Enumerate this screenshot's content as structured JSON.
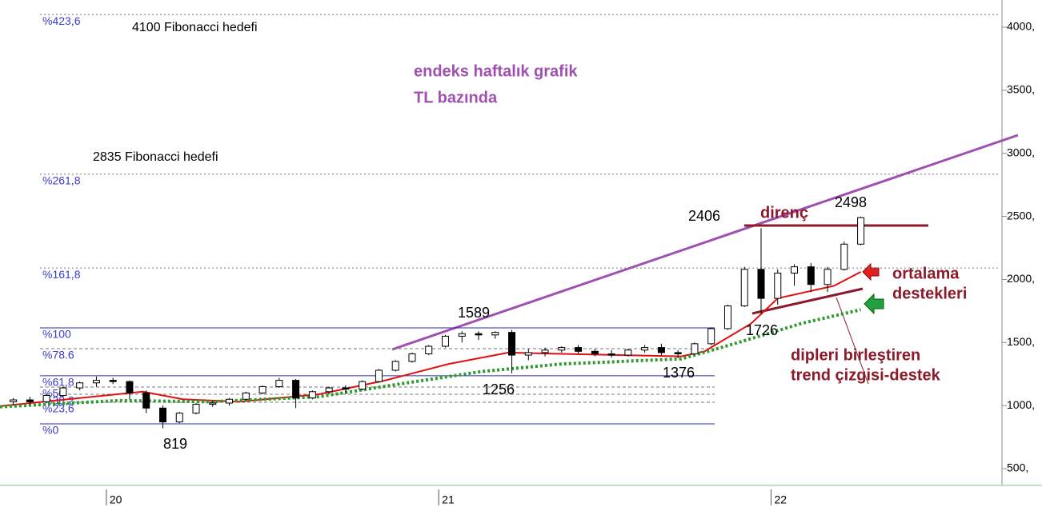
{
  "chart_data": {
    "type": "candlestick",
    "x": [
      2019.72,
      2019.77,
      2019.82,
      2019.87,
      2019.92,
      2019.97,
      2020.02,
      2020.07,
      2020.12,
      2020.17,
      2020.22,
      2020.27,
      2020.32,
      2020.37,
      2020.42,
      2020.47,
      2020.52,
      2020.57,
      2020.62,
      2020.67,
      2020.72,
      2020.77,
      2020.82,
      2020.87,
      2020.92,
      2020.97,
      2021.02,
      2021.07,
      2021.12,
      2021.17,
      2021.22,
      2021.27,
      2021.32,
      2021.37,
      2021.42,
      2021.47,
      2021.52,
      2021.57,
      2021.62,
      2021.67,
      2021.72,
      2021.77,
      2021.82,
      2021.87,
      2021.92,
      2021.97,
      2022.02,
      2022.07,
      2022.12,
      2022.17,
      2022.22,
      2022.27
    ],
    "open": [
      1030,
      1045,
      1030,
      1080,
      1140,
      1180,
      1200,
      1190,
      1100,
      980,
      870,
      940,
      1010,
      1020,
      1050,
      1100,
      1150,
      1200,
      1060,
      1110,
      1140,
      1130,
      1190,
      1280,
      1350,
      1410,
      1470,
      1550,
      1570,
      1560,
      1580,
      1400,
      1420,
      1440,
      1460,
      1430,
      1410,
      1400,
      1440,
      1460,
      1420,
      1410,
      1490,
      1610,
      1790,
      2080,
      1850,
      2050,
      2100,
      1960,
      2080,
      2280
    ],
    "high": [
      1060,
      1070,
      1090,
      1150,
      1190,
      1230,
      1220,
      1200,
      1120,
      1000,
      950,
      1020,
      1040,
      1060,
      1110,
      1160,
      1220,
      1210,
      1120,
      1150,
      1160,
      1200,
      1290,
      1360,
      1420,
      1480,
      1560,
      1589,
      1589,
      1590,
      1600,
      1450,
      1460,
      1470,
      1480,
      1450,
      1440,
      1450,
      1480,
      1490,
      1440,
      1500,
      1620,
      1800,
      2100,
      2406,
      2080,
      2120,
      2130,
      2100,
      2300,
      2498
    ],
    "low": [
      1000,
      1010,
      1020,
      1070,
      1120,
      1150,
      1170,
      1050,
      940,
      819,
      860,
      930,
      990,
      1000,
      1040,
      1090,
      1140,
      980,
      1050,
      1090,
      1100,
      1120,
      1180,
      1270,
      1340,
      1400,
      1460,
      1500,
      1520,
      1530,
      1256,
      1360,
      1390,
      1420,
      1410,
      1390,
      1380,
      1390,
      1420,
      1400,
      1376,
      1400,
      1480,
      1600,
      1780,
      1726,
      1800,
      1950,
      1900,
      1900,
      2070,
      2270
    ],
    "close": [
      1045,
      1030,
      1080,
      1140,
      1180,
      1200,
      1190,
      1100,
      980,
      870,
      940,
      1010,
      1020,
      1050,
      1100,
      1150,
      1200,
      1060,
      1110,
      1140,
      1130,
      1190,
      1280,
      1350,
      1410,
      1470,
      1550,
      1570,
      1560,
      1580,
      1400,
      1420,
      1440,
      1460,
      1430,
      1410,
      1400,
      1440,
      1460,
      1420,
      1410,
      1490,
      1610,
      1790,
      2080,
      1850,
      2050,
      2100,
      1960,
      2080,
      2280,
      2490
    ],
    "moving_averages": [
      {
        "color": "#e01010",
        "dash": false,
        "x": [
          2019.68,
          2020.11,
          2020.23,
          2020.4,
          2020.64,
          2020.84,
          2021.03,
          2021.21,
          2021.37,
          2021.73,
          2021.8,
          2021.94,
          2022.02,
          2022.19,
          2022.27
        ],
        "values": [
          995,
          1110,
          1050,
          1030,
          1090,
          1200,
          1330,
          1420,
          1410,
          1390,
          1430,
          1650,
          1850,
          1950,
          2060
        ]
      },
      {
        "color": "#2e9a2e",
        "dash": true,
        "x": [
          2019.68,
          2020.04,
          2020.31,
          2020.64,
          2020.88,
          2021.13,
          2021.37,
          2021.73,
          2021.85,
          2021.99,
          2022.09,
          2022.27
        ],
        "values": [
          990,
          1040,
          1030,
          1070,
          1170,
          1270,
          1330,
          1370,
          1460,
          1570,
          1650,
          1760
        ]
      }
    ],
    "fib_levels": [
      {
        "label": "%423,6",
        "value": 4100,
        "line": "dotted"
      },
      {
        "label": "%261,8",
        "value": 2835,
        "line": "dotted"
      },
      {
        "label": "%161,8",
        "value": 2091,
        "line": "dotted"
      },
      {
        "label": "%100",
        "value": 1616,
        "line": "solid"
      },
      {
        "label": "%78.6",
        "value": 1451,
        "line": "dashed"
      },
      {
        "label": "%61,8",
        "value": 1236,
        "line": "solid"
      },
      {
        "label": "%50",
        "value": 1147,
        "line": "dashed"
      },
      {
        "label": "%38,2",
        "value": 1090,
        "line": "dashed"
      },
      {
        "label": "%23,6",
        "value": 1026,
        "line": "dashed"
      },
      {
        "label": "%0",
        "value": 855,
        "line": "solid"
      }
    ],
    "annotations": [
      "4100 Fibonacci hedefi",
      "2835 Fibonacci hedefi",
      "endeks haftalık grafik",
      "TL bazında",
      "direnç",
      "ortalama",
      "destekleri",
      "dipleri birleştiren",
      "trend çizgisi-destek"
    ],
    "price_labels": [
      2406,
      2498,
      1589,
      1256,
      1376,
      1726,
      819
    ],
    "xlim": [
      2019.68,
      2022.69
    ],
    "xticks": [
      {
        "value": 2020,
        "label": "20"
      },
      {
        "value": 2021,
        "label": "21"
      },
      {
        "value": 2022,
        "label": "22"
      }
    ],
    "ylim": [
      500,
      4000
    ],
    "yticks": [
      {
        "value": 500,
        "label": "500,"
      },
      {
        "value": 1000,
        "label": "1000,"
      },
      {
        "value": 1500,
        "label": "1500,"
      },
      {
        "value": 2000,
        "label": "2000,"
      },
      {
        "value": 2500,
        "label": "2500,"
      },
      {
        "value": 3000,
        "label": "3000,"
      },
      {
        "value": 3500,
        "label": "3500,"
      },
      {
        "value": 4000,
        "label": "4000,"
      }
    ]
  }
}
